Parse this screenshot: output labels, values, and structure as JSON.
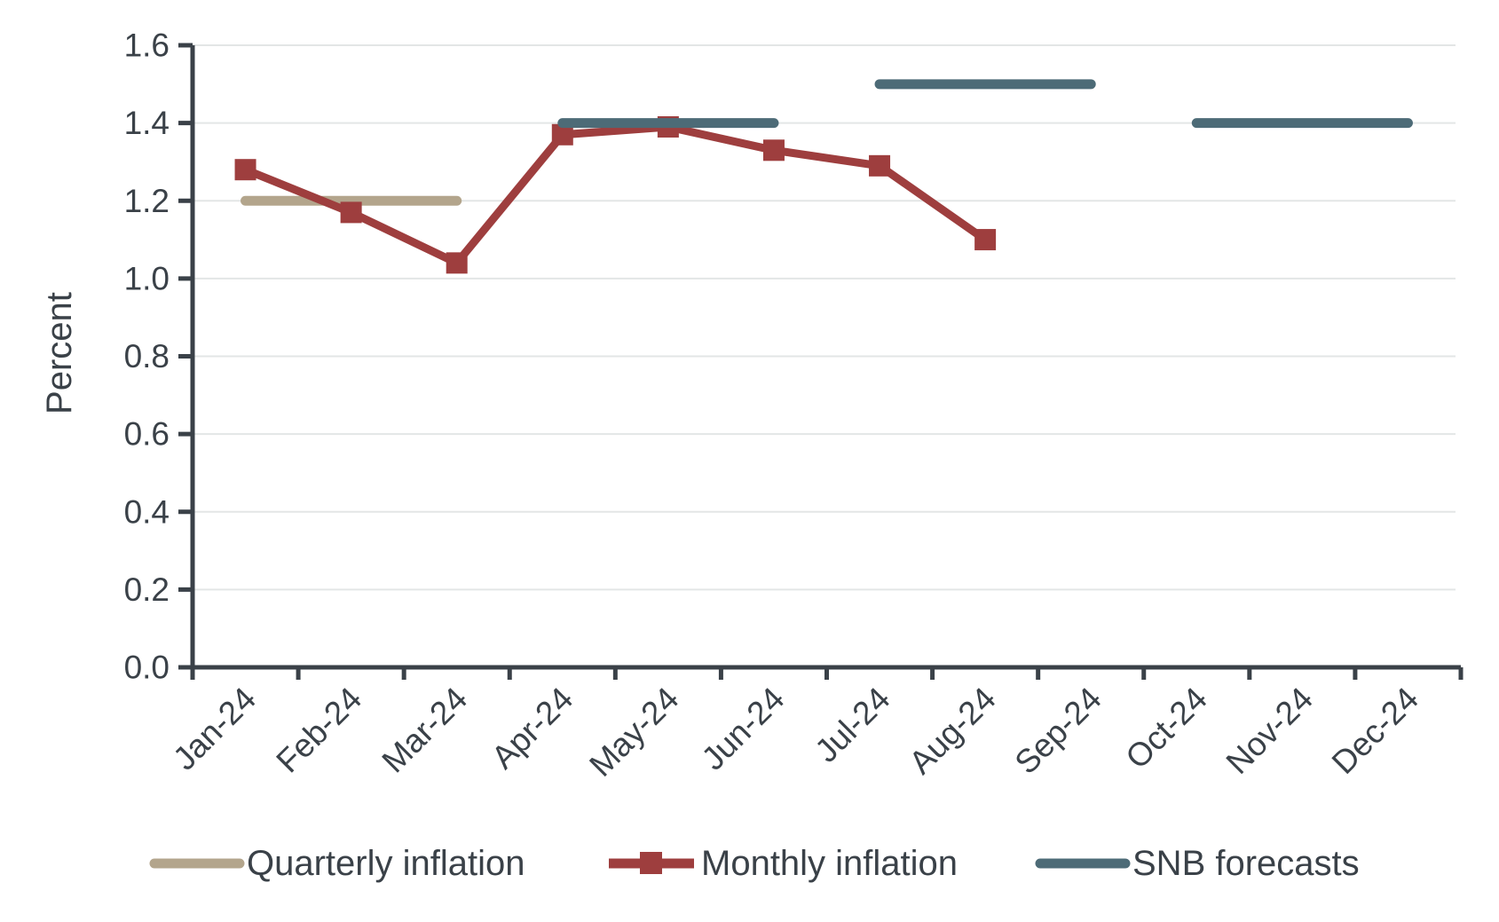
{
  "chart_data": {
    "type": "line",
    "title": "",
    "xlabel": "",
    "ylabel": "Percent",
    "ylim": [
      0.0,
      1.6
    ],
    "ytick_step": 0.2,
    "ytick_labels": [
      "0.0",
      "0.2",
      "0.4",
      "0.6",
      "0.8",
      "1.0",
      "1.2",
      "1.4",
      "1.6"
    ],
    "grid": "horizontal",
    "legend_position": "bottom",
    "axis_color": "#3a4148",
    "grid_color": "#e3e6e6",
    "categories": [
      "Jan-24",
      "Feb-24",
      "Mar-24",
      "Apr-24",
      "May-24",
      "Jun-24",
      "Jul-24",
      "Aug-24",
      "Sep-24",
      "Oct-24",
      "Nov-24",
      "Dec-24"
    ],
    "series": [
      {
        "name": "Quarterly inflation",
        "type": "segments",
        "color": "#b3a58c",
        "segments": [
          {
            "from": "Jan-24",
            "to": "Mar-24",
            "value": 1.2
          }
        ]
      },
      {
        "name": "Monthly inflation",
        "type": "line",
        "color": "#9e3e3e",
        "marker": "square",
        "x": [
          "Jan-24",
          "Feb-24",
          "Mar-24",
          "Apr-24",
          "May-24",
          "Jun-24",
          "Jul-24",
          "Aug-24"
        ],
        "values": [
          1.28,
          1.17,
          1.04,
          1.37,
          1.39,
          1.33,
          1.29,
          1.1
        ]
      },
      {
        "name": "SNB forecasts",
        "type": "segments",
        "color": "#4d6b77",
        "segments": [
          {
            "from": "Apr-24",
            "to": "Jun-24",
            "value": 1.4
          },
          {
            "from": "Jul-24",
            "to": "Sep-24",
            "value": 1.5
          },
          {
            "from": "Oct-24",
            "to": "Dec-24",
            "value": 1.4
          }
        ]
      }
    ]
  }
}
